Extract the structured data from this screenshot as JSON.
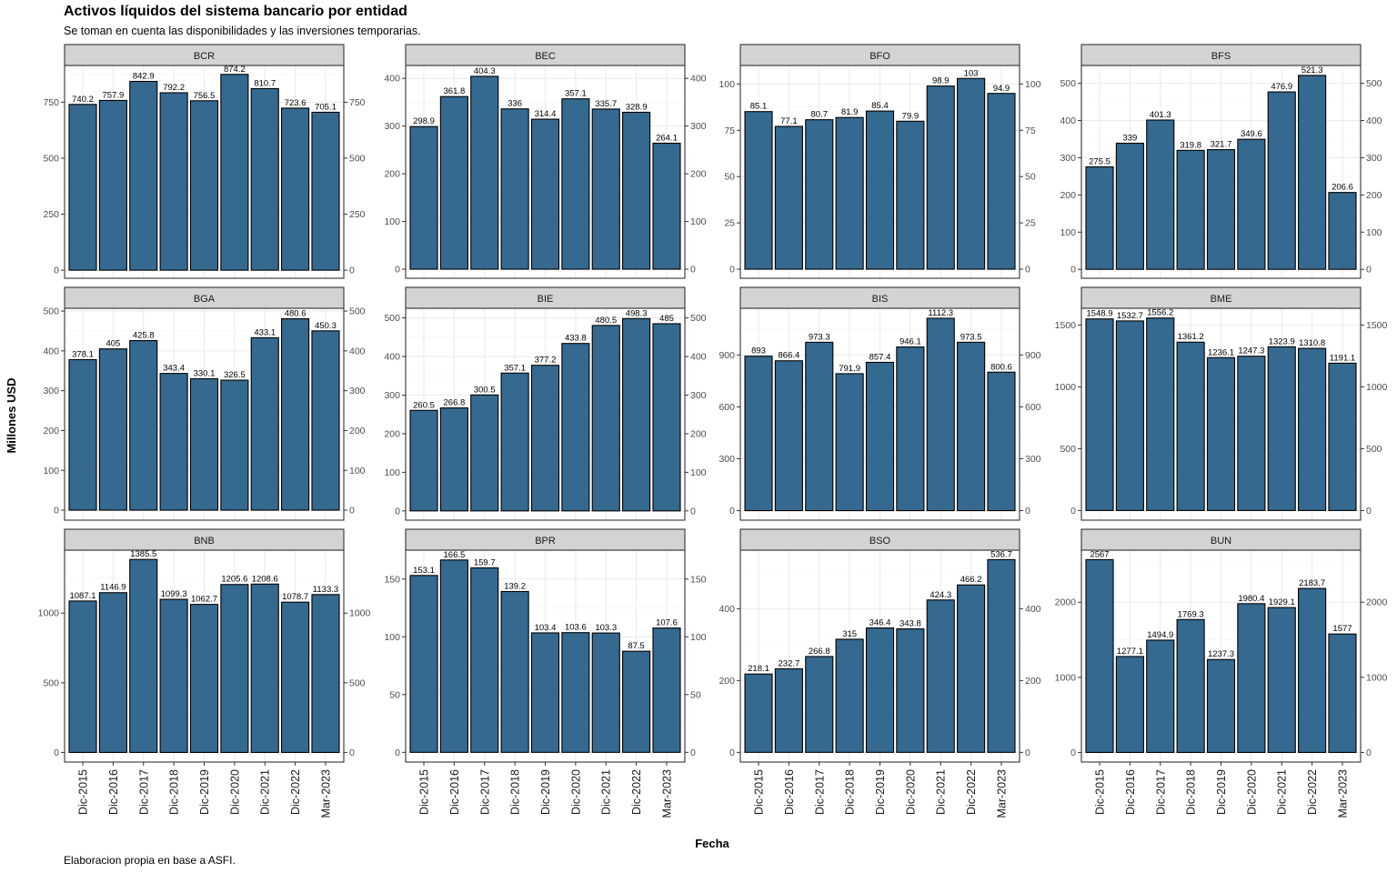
{
  "chart_data": {
    "type": "bar",
    "title": "Activos líquidos del sistema bancario por entidad",
    "subtitle": "Se toman en cuenta las disponibilidades y las inversiones temporarias.",
    "caption": "Elaboracion propia en base a ASFI.",
    "xlabel": "Fecha",
    "ylabel": "Millones USD",
    "bar_color": "#35698F",
    "strip_color": "#D3D3D3",
    "categories": [
      "Dic-2015",
      "Dic-2016",
      "Dic-2017",
      "Dic-2018",
      "Dic-2019",
      "Dic-2020",
      "Dic-2021",
      "Dic-2022",
      "Mar-2023"
    ],
    "facets": [
      {
        "name": "BCR",
        "values": [
          740.2,
          757.9,
          842.9,
          792.2,
          756.5,
          874.2,
          810.7,
          723.6,
          705.1
        ],
        "labels": [
          "740.2",
          "757.9",
          "842.9",
          "792.2",
          "756.5",
          "874.2",
          "810.7",
          "723.6",
          "705.1"
        ],
        "ylim": [
          -36,
          914
        ],
        "ticks": [
          0,
          250,
          500,
          750
        ],
        "tick_labels": [
          "0",
          "250",
          "500",
          "750"
        ]
      },
      {
        "name": "BEC",
        "values": [
          298.9,
          361.8,
          404.3,
          336,
          314.4,
          357.1,
          335.7,
          328.9,
          264.1
        ],
        "labels": [
          "298.9",
          "361.8",
          "404.3",
          "336",
          "314.4",
          "357.1",
          "335.7",
          "328.9",
          "264.1"
        ],
        "ylim": [
          -19,
          427
        ],
        "ticks": [
          0,
          100,
          200,
          300,
          400
        ],
        "tick_labels": [
          "0",
          "100",
          "200",
          "300",
          "400"
        ]
      },
      {
        "name": "BFO",
        "values": [
          85.1,
          77.1,
          80.7,
          81.9,
          85.4,
          79.9,
          98.9,
          103,
          94.9
        ],
        "labels": [
          "85.1",
          "77.1",
          "80.7",
          "81.9",
          "85.4",
          "79.9",
          "98.9",
          "103",
          "94.9"
        ],
        "ylim": [
          -4.9,
          110
        ],
        "ticks": [
          0,
          25,
          50,
          75,
          100
        ],
        "tick_labels": [
          "0",
          "25",
          "50",
          "75",
          "100"
        ]
      },
      {
        "name": "BFS",
        "values": [
          275.5,
          339,
          401.3,
          319.8,
          321.7,
          349.6,
          476.9,
          521.3,
          206.6
        ],
        "labels": [
          "275.5",
          "339",
          "401.3",
          "319.8",
          "321.7",
          "349.6",
          "476.9",
          "521.3",
          "206.6"
        ],
        "ylim": [
          -24,
          548
        ],
        "ticks": [
          0,
          100,
          200,
          300,
          400,
          500
        ],
        "tick_labels": [
          "0",
          "100",
          "200",
          "300",
          "400",
          "500"
        ]
      },
      {
        "name": "BGA",
        "values": [
          378.1,
          405,
          425.8,
          343.4,
          330.1,
          326.5,
          433.1,
          480.6,
          450.3
        ],
        "labels": [
          "378.1",
          "405",
          "425.8",
          "343.4",
          "330.1",
          "326.5",
          "433.1",
          "480.6",
          "450.3"
        ],
        "ylim": [
          -25,
          507
        ],
        "ticks": [
          0,
          100,
          200,
          300,
          400,
          500
        ],
        "tick_labels": [
          "0",
          "100",
          "200",
          "300",
          "400",
          "500"
        ]
      },
      {
        "name": "BIE",
        "values": [
          260.5,
          266.8,
          300.5,
          357.1,
          377.2,
          433.8,
          480.5,
          498.3,
          485
        ],
        "labels": [
          "260.5",
          "266.8",
          "300.5",
          "357.1",
          "377.2",
          "433.8",
          "480.5",
          "498.3",
          "485"
        ],
        "ylim": [
          -24,
          525
        ],
        "ticks": [
          0,
          100,
          200,
          300,
          400,
          500
        ],
        "tick_labels": [
          "0",
          "100",
          "200",
          "300",
          "400",
          "500"
        ]
      },
      {
        "name": "BIS",
        "values": [
          893,
          866.4,
          973.3,
          791.9,
          857.4,
          946.1,
          1112.3,
          973.5,
          800.6
        ],
        "labels": [
          "893",
          "866.4",
          "973.3",
          "791.9",
          "857.4",
          "946.1",
          "1112.3",
          "973.5",
          "800.6"
        ],
        "ylim": [
          -55,
          1170
        ],
        "ticks": [
          0,
          300,
          600,
          900
        ],
        "tick_labels": [
          "0",
          "300",
          "600",
          "900"
        ]
      },
      {
        "name": "BME",
        "values": [
          1548.9,
          1532.7,
          1556.2,
          1361.2,
          1236.1,
          1247.3,
          1323.9,
          1310.8,
          1191.1
        ],
        "labels": [
          "1548.9",
          "1532.7",
          "1556.2",
          "1361.2",
          "1236.1",
          "1247.3",
          "1323.9",
          "1310.8",
          "1191.1"
        ],
        "ylim": [
          -78,
          1635
        ],
        "ticks": [
          0,
          500,
          1000,
          1500
        ],
        "tick_labels": [
          "0",
          "500",
          "1000",
          "1500"
        ]
      },
      {
        "name": "BNB",
        "values": [
          1087.1,
          1146.9,
          1385.5,
          1099.3,
          1062.7,
          1205.6,
          1208.6,
          1078.7,
          1133.3
        ],
        "labels": [
          "1087.1",
          "1146.9",
          "1385.5",
          "1099.3",
          "1062.7",
          "1205.6",
          "1208.6",
          "1078.7",
          "1133.3"
        ],
        "ylim": [
          -69,
          1452
        ],
        "ticks": [
          0,
          500,
          1000
        ],
        "tick_labels": [
          "0",
          "500",
          "1000"
        ]
      },
      {
        "name": "BPR",
        "values": [
          153.1,
          166.5,
          159.7,
          139.2,
          103.4,
          103.6,
          103.3,
          87.5,
          107.6
        ],
        "labels": [
          "153.1",
          "166.5",
          "159.7",
          "139.2",
          "103.4",
          "103.6",
          "103.3",
          "87.5",
          "107.6"
        ],
        "ylim": [
          -8.4,
          175
        ],
        "ticks": [
          0,
          50,
          100,
          150
        ],
        "tick_labels": [
          "0",
          "50",
          "100",
          "150"
        ]
      },
      {
        "name": "BSO",
        "values": [
          218.1,
          232.7,
          266.8,
          315,
          346.4,
          343.8,
          424.3,
          466.2,
          536.7
        ],
        "labels": [
          "218.1",
          "232.7",
          "266.8",
          "315",
          "346.4",
          "343.8",
          "424.3",
          "466.2",
          "536.7"
        ],
        "ylim": [
          -27,
          563
        ],
        "ticks": [
          0,
          200,
          400
        ],
        "tick_labels": [
          "0",
          "200",
          "400"
        ]
      },
      {
        "name": "BUN",
        "values": [
          2567,
          1277.1,
          1494.9,
          1769.3,
          1237.3,
          1980.4,
          1929.1,
          2183.7,
          1577
        ],
        "labels": [
          "2567",
          "1277.1",
          "1494.9",
          "1769.3",
          "1237.3",
          "1980.4",
          "1929.1",
          "2183.7",
          "1577"
        ],
        "ylim": [
          -128,
          2693
        ],
        "ticks": [
          0,
          1000,
          2000
        ],
        "tick_labels": [
          "0",
          "1000",
          "2000"
        ]
      }
    ]
  }
}
